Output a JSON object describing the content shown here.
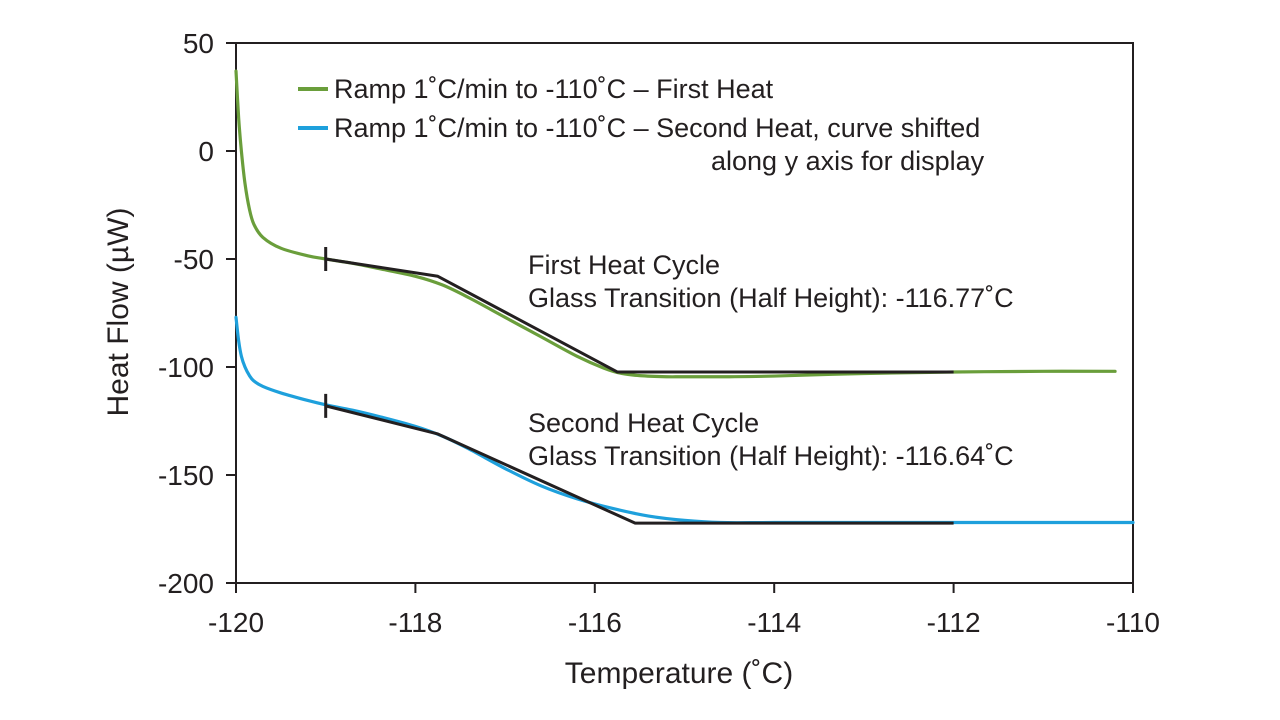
{
  "chart_data": {
    "type": "line",
    "xlabel": "Temperature (˚C)",
    "ylabel": "Heat Flow (µW)",
    "xlim": [
      -120,
      -110
    ],
    "ylim": [
      -200,
      50
    ],
    "xticks": [
      -120,
      -118,
      -116,
      -114,
      -112,
      -110
    ],
    "yticks": [
      50,
      0,
      -50,
      -100,
      -150,
      -200
    ],
    "xtick_labels": [
      "-120",
      "-118",
      "-116",
      "-114",
      "-112",
      "-110"
    ],
    "ytick_labels": [
      "50",
      "0",
      "-50",
      "-100",
      "-150",
      "-200"
    ],
    "legend": {
      "placement": "top-left",
      "entries": [
        {
          "label": "Ramp 1˚C/min to -110˚C – First Heat",
          "color": "#6a9e3b"
        },
        {
          "label": "Ramp 1˚C/min to -110˚C – Second Heat, curve shifted",
          "label_line2": "along y axis for display",
          "color": "#1ea0dc"
        }
      ]
    },
    "series": [
      {
        "name": "First Heat",
        "color": "#6a9e3b",
        "x": [
          -120.0,
          -119.97,
          -119.94,
          -119.9,
          -119.85,
          -119.8,
          -119.7,
          -119.5,
          -119.2,
          -119.0,
          -118.7,
          -118.4,
          -118.0,
          -117.7,
          -117.4,
          -117.0,
          -116.6,
          -116.2,
          -115.9,
          -115.7,
          -115.5,
          -115.2,
          -115.0,
          -114.5,
          -114.0,
          -113.0,
          -112.0,
          -111.0,
          -110.2
        ],
        "y": [
          37,
          15,
          0,
          -15,
          -27,
          -34,
          -40,
          -45,
          -48.5,
          -50,
          -52,
          -54.5,
          -58,
          -62,
          -68,
          -77,
          -86,
          -95,
          -100.5,
          -103,
          -104,
          -104.5,
          -104.5,
          -104.5,
          -104.2,
          -103,
          -102.3,
          -102,
          -102
        ]
      },
      {
        "name": "Second Heat",
        "color": "#1ea0dc",
        "x": [
          -120.0,
          -119.97,
          -119.94,
          -119.9,
          -119.85,
          -119.8,
          -119.7,
          -119.5,
          -119.2,
          -119.0,
          -118.7,
          -118.4,
          -118.0,
          -117.7,
          -117.4,
          -117.0,
          -116.6,
          -116.2,
          -115.8,
          -115.4,
          -115.0,
          -114.6,
          -114.0,
          -113.0,
          -112.0,
          -111.0,
          -110.0
        ],
        "y": [
          -77,
          -88,
          -95,
          -100,
          -104,
          -106.5,
          -109,
          -112,
          -115.5,
          -117.5,
          -120,
          -123,
          -127.5,
          -132,
          -138,
          -147,
          -155,
          -161,
          -165.5,
          -169,
          -171,
          -172,
          -172,
          -172,
          -172,
          -172,
          -172
        ]
      }
    ],
    "tangent_lines": [
      {
        "name": "First Heat tangents",
        "x": [
          -119.0,
          -117.75,
          -115.75,
          -112.0
        ],
        "y": [
          -50,
          -58,
          -102.3,
          -102.3
        ]
      },
      {
        "name": "Second Heat tangents",
        "x": [
          -119.0,
          -117.75,
          -115.55,
          -112.0
        ],
        "y": [
          -118,
          -131,
          -172.3,
          -172.3
        ]
      }
    ],
    "markers": [
      {
        "x": -119.0,
        "y": -50
      },
      {
        "x": -119.0,
        "y": -118
      }
    ],
    "annotations": [
      {
        "line1": "First Heat Cycle",
        "line2": "Glass Transition (Half Height): -116.77˚C"
      },
      {
        "line1": "Second Heat Cycle",
        "line2": "Glass Transition (Half Height): -116.64˚C"
      }
    ]
  }
}
